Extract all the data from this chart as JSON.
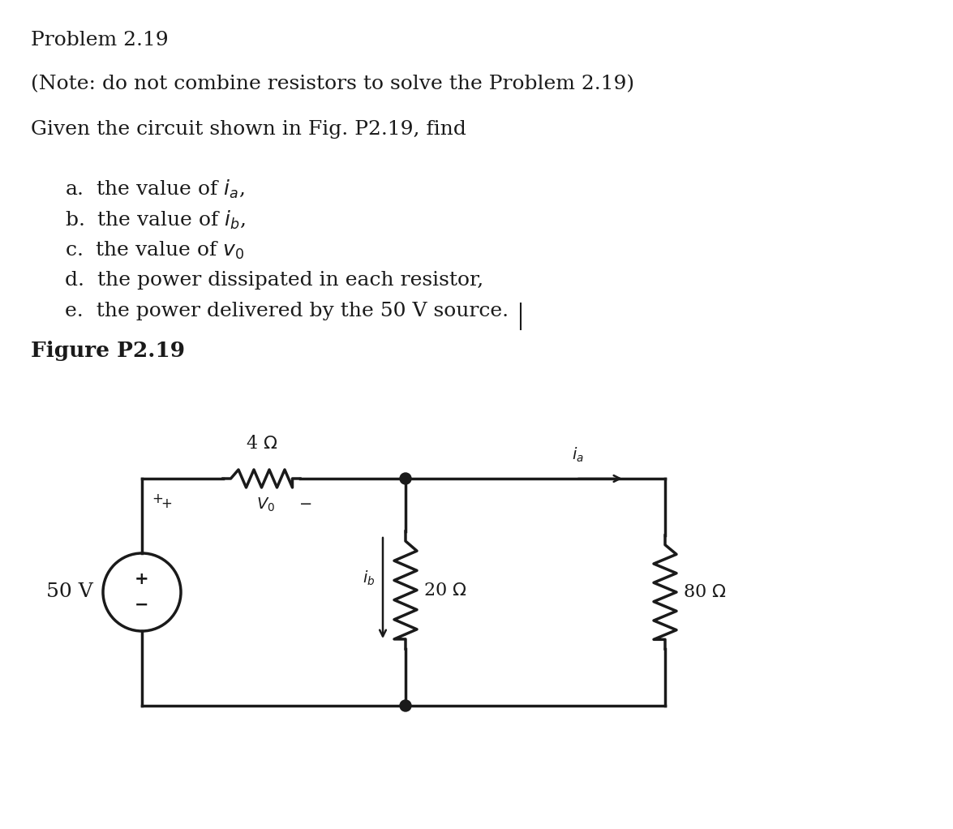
{
  "bg_color": "#ffffff",
  "text_color": "#1a1a1a",
  "circuit_color": "#1a1a1a",
  "title1": "Problem 2.19",
  "title2": "(Note: do not combine resistors to solve the Problem 2.19)",
  "title3": "Given the circuit shown in Fig. P2.19, find",
  "item_a": "a.  the value of $i_a$,",
  "item_b": "b.  the value of $i_b$,",
  "item_c": "c.  the value of $v_0$",
  "item_d": "d.  the power dissipated in each resistor,",
  "item_e": "e.  the power delivered by the 50 V source.",
  "fig_title": "Figure P2.19",
  "font_size_main": 18,
  "font_size_fig": 19
}
